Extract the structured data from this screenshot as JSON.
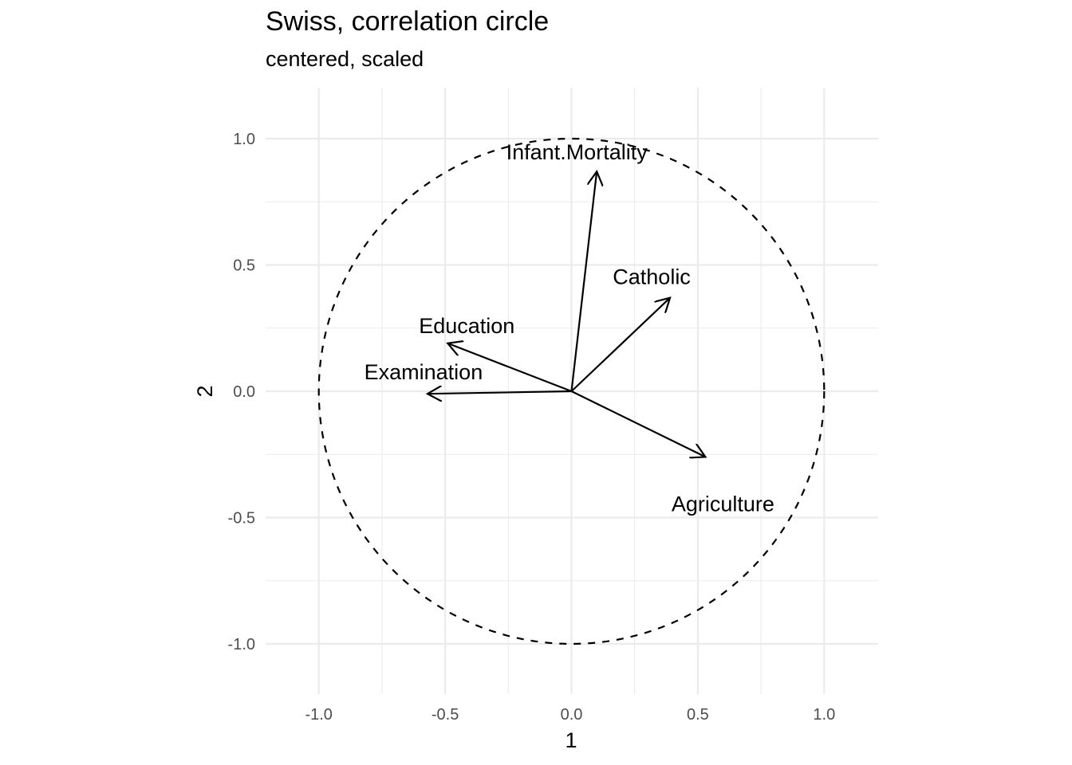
{
  "chart_data": {
    "type": "scatter",
    "title": "Swiss, correlation circle",
    "subtitle": "centered, scaled",
    "xlabel": "1",
    "ylabel": "2",
    "xlim": [
      -1.2,
      1.2
    ],
    "ylim": [
      -1.2,
      1.2
    ],
    "grid": true,
    "x_ticks": [
      -1.0,
      -0.5,
      0.0,
      0.5,
      1.0
    ],
    "x_tick_labels": [
      "-1.0",
      "-0.5",
      "0.0",
      "0.5",
      "1.0"
    ],
    "y_ticks": [
      1.0,
      0.5,
      0.0,
      -0.5,
      -1.0
    ],
    "y_tick_labels": [
      "1.0",
      "0.5",
      "0.0",
      "-0.5",
      "-1.0"
    ],
    "unit_circle": {
      "radius": 1.0,
      "line": "dashed"
    },
    "vectors": [
      {
        "name": "Agriculture",
        "x": 0.53,
        "y": -0.26
      },
      {
        "name": "Examination",
        "x": -0.57,
        "y": -0.01
      },
      {
        "name": "Education",
        "x": -0.49,
        "y": 0.19
      },
      {
        "name": "Catholic",
        "x": 0.39,
        "y": 0.37
      },
      {
        "name": "Infant.Mortality",
        "x": 0.1,
        "y": 0.87
      }
    ]
  }
}
